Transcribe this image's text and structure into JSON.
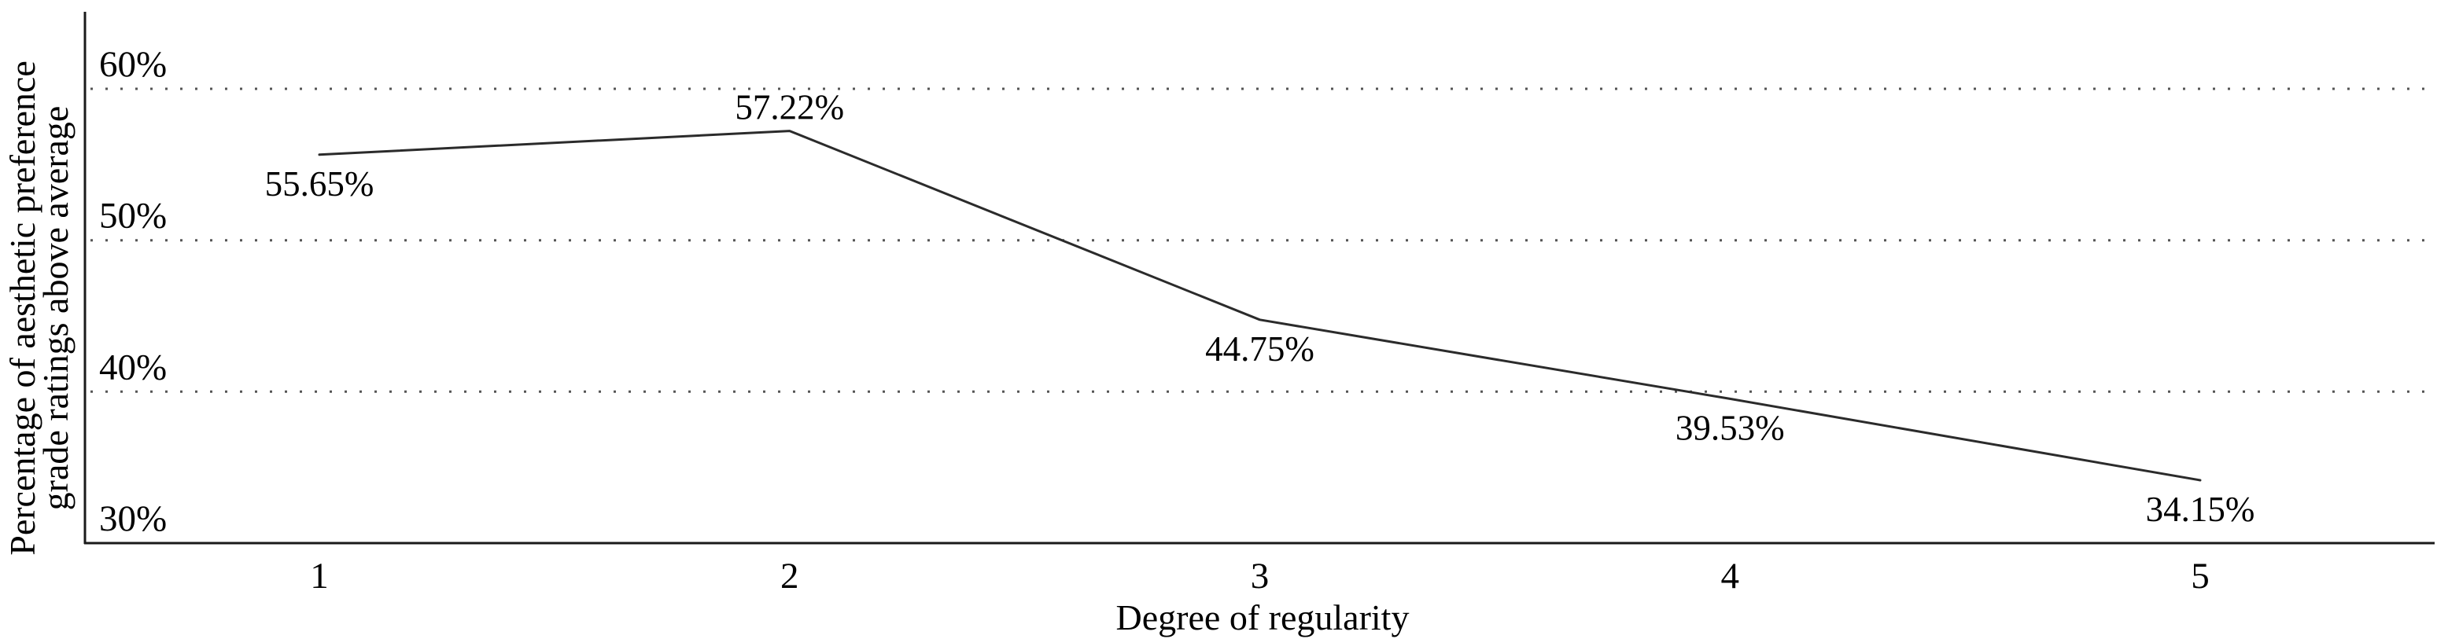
{
  "chart_data": {
    "type": "line",
    "title": "",
    "xlabel": "Degree of regularity",
    "ylabel_line1": "Percentage of aesthetic preference",
    "ylabel_line2": "grade ratings above average",
    "x": [
      1,
      2,
      3,
      4,
      5
    ],
    "values": [
      55.65,
      57.22,
      44.75,
      39.53,
      34.15
    ],
    "point_labels": [
      "55.65%",
      "57.22%",
      "44.75%",
      "39.53%",
      "34.15%"
    ],
    "point_label_positions": [
      "below",
      "above",
      "below",
      "below",
      "below"
    ],
    "x_tick_labels": [
      "1",
      "2",
      "3",
      "4",
      "5"
    ],
    "y_tick_labels": [
      "60%",
      "50%",
      "40%",
      "30%"
    ],
    "y_tick_values": [
      60,
      50,
      40,
      30
    ],
    "gridline_values": [
      60,
      50,
      40
    ],
    "ylim": [
      30,
      60
    ],
    "xlim": [
      1,
      5
    ],
    "grid": "horizontal dotted",
    "legend": "none",
    "line_color": "#2b2b2b",
    "axis_color": "#1a1a1a",
    "grid_color": "#555555",
    "text_color": "#000000",
    "background_color": "#ffffff"
  }
}
